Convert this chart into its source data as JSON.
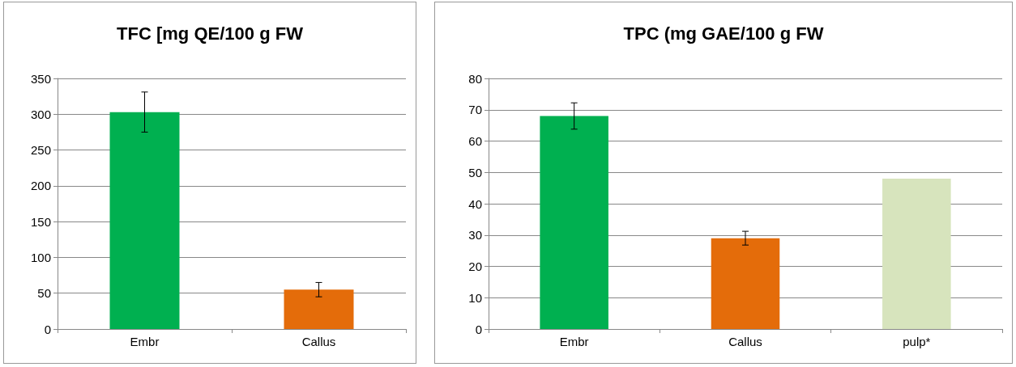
{
  "chart_data": [
    {
      "type": "bar",
      "title": "TFC [mg QE/100 g FW",
      "categories": [
        "Embr",
        "Callus"
      ],
      "values": [
        303,
        55
      ],
      "colors": [
        "#00b050",
        "#e46c0a"
      ],
      "errors": [
        28,
        10
      ],
      "ylim": [
        0,
        350
      ],
      "yticks": [
        0,
        50,
        100,
        150,
        200,
        250,
        300,
        350
      ],
      "grid": "y"
    },
    {
      "type": "bar",
      "title": "TPC (mg GAE/100 g FW",
      "categories": [
        "Embr",
        "Callus",
        "pulp*"
      ],
      "values": [
        68,
        29,
        48
      ],
      "colors": [
        "#00b050",
        "#e46c0a",
        "#d7e4bd"
      ],
      "errors": [
        4.2,
        2.2,
        null
      ],
      "ylim": [
        0,
        80
      ],
      "yticks": [
        0,
        10,
        20,
        30,
        40,
        50,
        60,
        70,
        80
      ],
      "grid": "y"
    }
  ]
}
